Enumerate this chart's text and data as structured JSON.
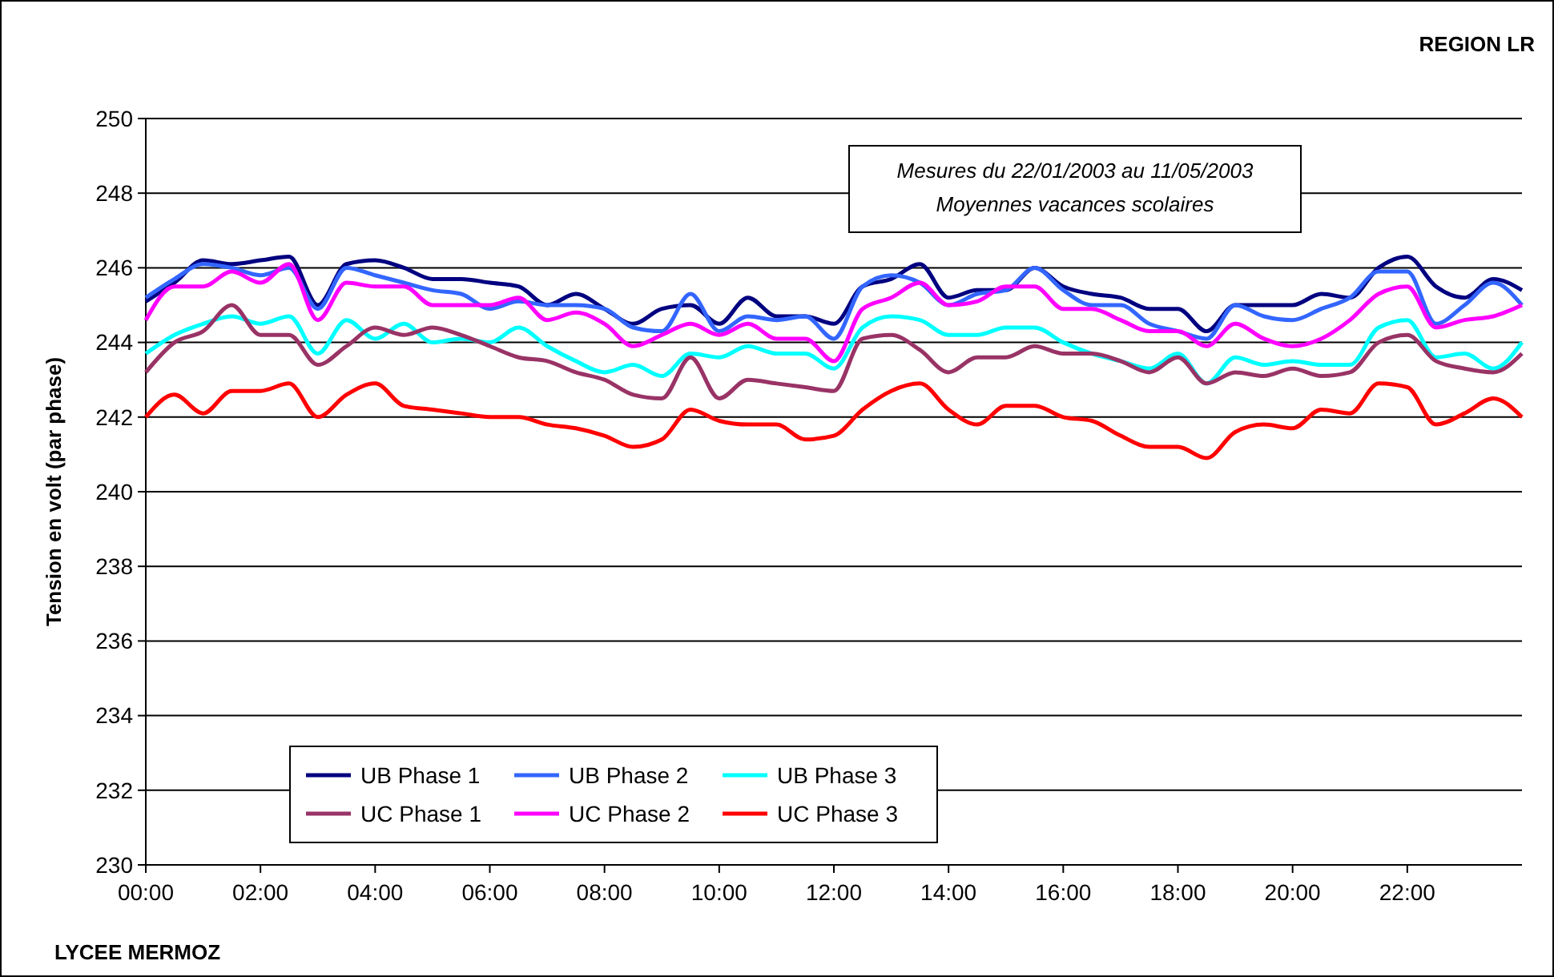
{
  "chart_data": {
    "type": "line",
    "ylabel": "Tension en volt (par phase)",
    "annotations": [
      "Mesures du 22/01/2003 au 11/05/2003",
      "Moyennes vacances scolaires",
      "REGION LR",
      "LYCEE MERMOZ"
    ],
    "x": [
      0,
      0.5,
      1,
      1.5,
      2,
      2.5,
      3,
      3.5,
      4,
      4.5,
      5,
      5.5,
      6,
      6.5,
      7,
      7.5,
      8,
      8.5,
      9,
      9.5,
      10,
      10.5,
      11,
      11.5,
      12,
      12.5,
      13,
      13.5,
      14,
      14.5,
      15,
      15.5,
      16,
      16.5,
      17,
      17.5,
      18,
      18.5,
      19,
      19.5,
      20,
      20.5,
      21,
      21.5,
      22,
      22.5,
      23,
      23.5,
      24
    ],
    "xlim": [
      0,
      24
    ],
    "xticks": [
      {
        "value": 0,
        "label": "00:00"
      },
      {
        "value": 2,
        "label": "02:00"
      },
      {
        "value": 4,
        "label": "04:00"
      },
      {
        "value": 6,
        "label": "06:00"
      },
      {
        "value": 8,
        "label": "08:00"
      },
      {
        "value": 10,
        "label": "10:00"
      },
      {
        "value": 12,
        "label": "12:00"
      },
      {
        "value": 14,
        "label": "14:00"
      },
      {
        "value": 16,
        "label": "16:00"
      },
      {
        "value": 18,
        "label": "18:00"
      },
      {
        "value": 20,
        "label": "20:00"
      },
      {
        "value": 22,
        "label": "22:00"
      }
    ],
    "ylim": [
      230,
      250
    ],
    "yticks": [
      230,
      232,
      234,
      236,
      238,
      240,
      242,
      244,
      246,
      248,
      250
    ],
    "grid": "y",
    "legend": "bottom left",
    "line_style": "solid",
    "series": [
      {
        "name": "UB Phase 1",
        "color": "#000080",
        "values": [
          245.1,
          245.6,
          246.2,
          246.1,
          246.2,
          246.3,
          245.0,
          246.1,
          246.2,
          246.0,
          245.7,
          245.7,
          245.6,
          245.5,
          245.0,
          245.3,
          244.9,
          244.5,
          244.9,
          245.0,
          244.5,
          245.2,
          244.7,
          244.7,
          244.5,
          245.5,
          245.7,
          246.1,
          245.2,
          245.4,
          245.4,
          246.0,
          245.5,
          245.3,
          245.2,
          244.9,
          244.9,
          244.3,
          245.0,
          245.0,
          245.0,
          245.3,
          245.2,
          246.0,
          246.3,
          245.5,
          245.2,
          245.7,
          245.4
        ]
      },
      {
        "name": "UB Phase 2",
        "color": "#3366ff",
        "values": [
          245.2,
          245.7,
          246.1,
          246.0,
          245.8,
          246.0,
          244.9,
          246.0,
          245.8,
          245.6,
          245.4,
          245.3,
          244.9,
          245.1,
          245.0,
          245.0,
          244.9,
          244.4,
          244.3,
          245.3,
          244.3,
          244.7,
          244.6,
          244.7,
          244.1,
          245.5,
          245.8,
          245.6,
          245.0,
          245.3,
          245.4,
          246.0,
          245.4,
          245.0,
          245.0,
          244.5,
          244.3,
          244.1,
          245.0,
          244.7,
          244.6,
          244.9,
          245.2,
          245.9,
          245.9,
          244.5,
          245.0,
          245.6,
          245.0
        ]
      },
      {
        "name": "UB Phase 3",
        "color": "#00ffff",
        "values": [
          243.7,
          244.2,
          244.5,
          244.7,
          244.5,
          244.7,
          243.7,
          244.6,
          244.1,
          244.5,
          244.0,
          244.1,
          244.0,
          244.4,
          243.9,
          243.5,
          243.2,
          243.4,
          243.1,
          243.7,
          243.6,
          243.9,
          243.7,
          243.7,
          243.3,
          244.4,
          244.7,
          244.6,
          244.2,
          244.2,
          244.4,
          244.4,
          244.0,
          243.7,
          243.5,
          243.3,
          243.7,
          242.9,
          243.6,
          243.4,
          243.5,
          243.4,
          243.4,
          244.4,
          244.6,
          243.6,
          243.7,
          243.3,
          244.0
        ]
      },
      {
        "name": "UC Phase 1",
        "color": "#993366",
        "values": [
          243.2,
          244.0,
          244.3,
          245.0,
          244.2,
          244.2,
          243.4,
          243.9,
          244.4,
          244.2,
          244.4,
          244.2,
          243.9,
          243.6,
          243.5,
          243.2,
          243.0,
          242.6,
          242.5,
          243.6,
          242.5,
          243.0,
          242.9,
          242.8,
          242.7,
          244.1,
          244.2,
          243.8,
          243.2,
          243.6,
          243.6,
          243.9,
          243.7,
          243.7,
          243.5,
          243.2,
          243.6,
          242.9,
          243.2,
          243.1,
          243.3,
          243.1,
          243.2,
          244.0,
          244.2,
          243.5,
          243.3,
          243.2,
          243.7
        ]
      },
      {
        "name": "UC Phase 2",
        "color": "#ff00ff",
        "values": [
          244.6,
          245.5,
          245.5,
          245.9,
          245.6,
          246.1,
          244.6,
          245.6,
          245.5,
          245.5,
          245.0,
          245.0,
          245.0,
          245.2,
          244.6,
          244.8,
          244.5,
          243.9,
          244.2,
          244.5,
          244.2,
          244.5,
          244.1,
          244.1,
          243.5,
          244.9,
          245.2,
          245.6,
          245.0,
          245.1,
          245.5,
          245.5,
          244.9,
          244.9,
          244.6,
          244.3,
          244.3,
          243.9,
          244.5,
          244.1,
          243.9,
          244.1,
          244.6,
          245.3,
          245.5,
          244.4,
          244.6,
          244.7,
          245.0
        ]
      },
      {
        "name": "UC Phase 3",
        "color": "#ff0000",
        "values": [
          242.0,
          242.6,
          242.1,
          242.7,
          242.7,
          242.9,
          242.0,
          242.6,
          242.9,
          242.3,
          242.2,
          242.1,
          242.0,
          242.0,
          241.8,
          241.7,
          241.5,
          241.2,
          241.4,
          242.2,
          241.9,
          241.8,
          241.8,
          241.4,
          241.5,
          242.2,
          242.7,
          242.9,
          242.2,
          241.8,
          242.3,
          242.3,
          242.0,
          241.9,
          241.5,
          241.2,
          241.2,
          240.9,
          241.6,
          241.8,
          241.7,
          242.2,
          242.1,
          242.9,
          242.8,
          241.8,
          242.1,
          242.5,
          242.0
        ]
      }
    ]
  }
}
